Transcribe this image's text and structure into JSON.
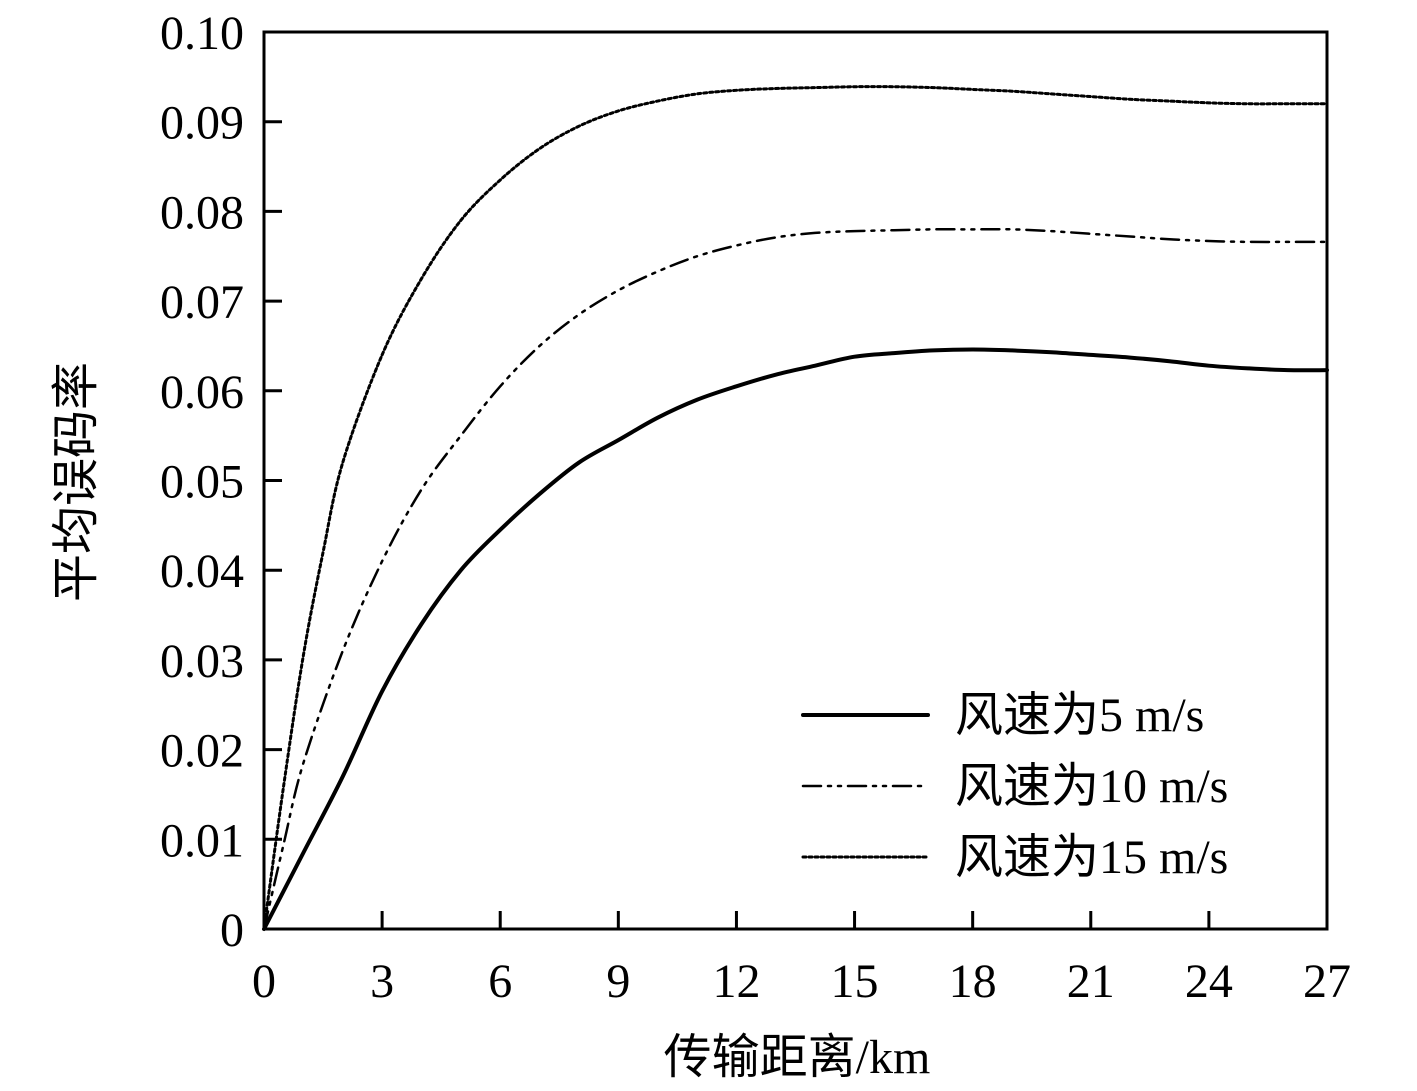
{
  "chart_data": {
    "type": "line",
    "xlabel": "传输距离/km",
    "ylabel": "平均误码率",
    "xlim": [
      0,
      27
    ],
    "ylim": [
      0,
      0.1
    ],
    "xticks": [
      "0",
      "3",
      "6",
      "9",
      "12",
      "15",
      "18",
      "21",
      "24",
      "27"
    ],
    "yticks": [
      "0",
      "0.01",
      "0.02",
      "0.03",
      "0.04",
      "0.05",
      "0.06",
      "0.07",
      "0.08",
      "0.09",
      "0.10"
    ],
    "legend_position": "lower-right",
    "series": [
      {
        "name": "风速为5 m/s",
        "style": "solid",
        "color": "#000000",
        "x": [
          0,
          1,
          2,
          3,
          4,
          5,
          6,
          7,
          8,
          9,
          10,
          11,
          12,
          13,
          14,
          15,
          16,
          17,
          18,
          19,
          20,
          21,
          22,
          23,
          24,
          25,
          26,
          27
        ],
        "y": [
          0.0,
          0.0085,
          0.017,
          0.0265,
          0.034,
          0.04,
          0.0445,
          0.0485,
          0.052,
          0.0545,
          0.057,
          0.059,
          0.0605,
          0.0618,
          0.0628,
          0.0638,
          0.0642,
          0.0645,
          0.0646,
          0.0645,
          0.0643,
          0.064,
          0.0637,
          0.0633,
          0.0628,
          0.0625,
          0.0623,
          0.0623
        ]
      },
      {
        "name": "风速为10 m/s",
        "style": "dash-dot-dot",
        "color": "#000000",
        "x": [
          0,
          0.5,
          1,
          2,
          3,
          4,
          5,
          6,
          7,
          8,
          9,
          10,
          11,
          12,
          13,
          14,
          15,
          16,
          17,
          18,
          19,
          20,
          21,
          22,
          23,
          24,
          25,
          26,
          27
        ],
        "y": [
          0.0,
          0.0095,
          0.0185,
          0.031,
          0.041,
          0.049,
          0.055,
          0.0605,
          0.065,
          0.0685,
          0.0712,
          0.0733,
          0.075,
          0.0762,
          0.0771,
          0.0776,
          0.0778,
          0.0779,
          0.078,
          0.078,
          0.078,
          0.0778,
          0.0775,
          0.0772,
          0.0769,
          0.0767,
          0.0766,
          0.0766,
          0.0766
        ]
      },
      {
        "name": "风速为15 m/s",
        "style": "dotted",
        "color": "#000000",
        "x": [
          0,
          0.5,
          1,
          1.5,
          2,
          3,
          4,
          5,
          6,
          7,
          8,
          9,
          10,
          11,
          12,
          13,
          14,
          15,
          16,
          17,
          18,
          19,
          20,
          21,
          22,
          23,
          24,
          25,
          26,
          27
        ],
        "y": [
          0.0,
          0.016,
          0.0305,
          0.042,
          0.052,
          0.064,
          0.0725,
          0.079,
          0.0835,
          0.087,
          0.0895,
          0.0912,
          0.0923,
          0.0931,
          0.0935,
          0.0937,
          0.0938,
          0.0939,
          0.0939,
          0.0938,
          0.0936,
          0.0934,
          0.0931,
          0.0928,
          0.0925,
          0.0923,
          0.0921,
          0.092,
          0.092,
          0.092
        ]
      }
    ]
  }
}
